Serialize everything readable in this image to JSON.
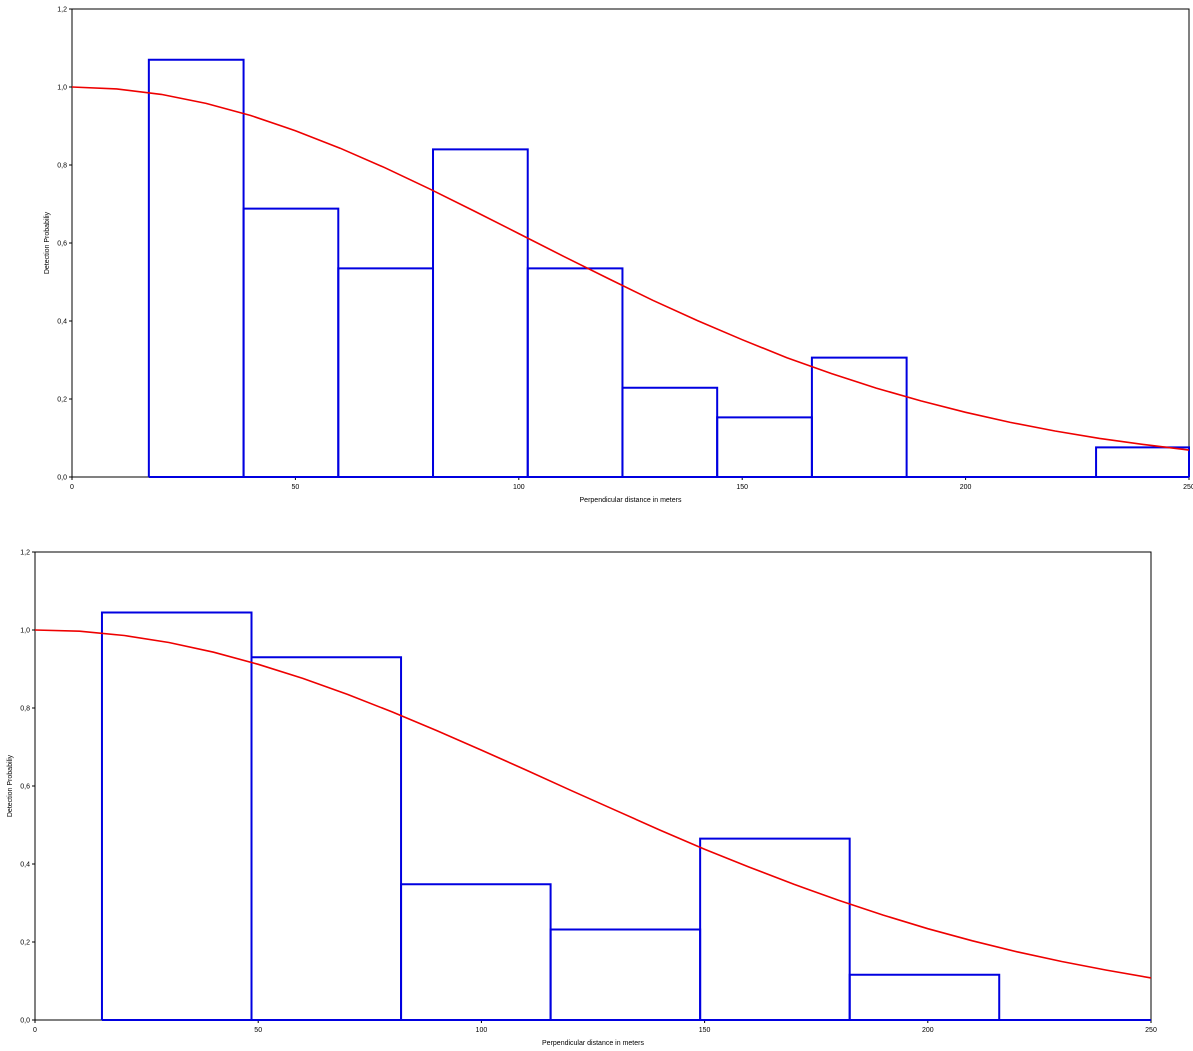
{
  "colors": {
    "histogram": "#0000e0",
    "curve": "#ee0000",
    "axis": "#000000"
  },
  "chart_data": [
    {
      "type": "bar",
      "xlabel": "Perpendicular distance in meters",
      "ylabel": "Detection Probabiliy",
      "xlim": [
        0,
        250
      ],
      "ylim": [
        0,
        1.2
      ],
      "xticks": [
        0,
        50,
        100,
        150,
        200,
        250
      ],
      "xtick_labels": [
        "0",
        "50",
        "100",
        "150",
        "200",
        "250"
      ],
      "yticks": [
        0,
        0.2,
        0.4,
        0.6,
        0.8,
        1.0,
        1.2
      ],
      "ytick_labels": [
        "0,0",
        "0,2",
        "0,4",
        "0,6",
        "0,8",
        "1,0",
        "1,2"
      ],
      "grid": false,
      "bins": [
        {
          "x0": 17.2,
          "x1": 38.4,
          "value": 1.07
        },
        {
          "x0": 38.4,
          "x1": 59.6,
          "value": 0.688
        },
        {
          "x0": 59.6,
          "x1": 80.8,
          "value": 0.535
        },
        {
          "x0": 80.8,
          "x1": 102.0,
          "value": 0.84
        },
        {
          "x0": 102.0,
          "x1": 123.2,
          "value": 0.535
        },
        {
          "x0": 123.2,
          "x1": 144.4,
          "value": 0.229
        },
        {
          "x0": 144.4,
          "x1": 165.6,
          "value": 0.153
        },
        {
          "x0": 165.6,
          "x1": 186.8,
          "value": 0.306
        },
        {
          "x0": 186.8,
          "x1": 208.0,
          "value": 0.0
        },
        {
          "x0": 208.0,
          "x1": 229.2,
          "value": 0.0
        },
        {
          "x0": 229.2,
          "x1": 250.0,
          "value": 0.076
        }
      ],
      "curve": {
        "x": [
          0,
          10,
          20,
          30,
          40,
          50,
          60,
          70,
          80,
          90,
          100,
          110,
          120,
          130,
          140,
          150,
          160,
          170,
          180,
          190,
          200,
          210,
          220,
          230,
          240,
          250
        ],
        "y": [
          1.0,
          0.995,
          0.981,
          0.958,
          0.927,
          0.888,
          0.843,
          0.793,
          0.739,
          0.682,
          0.624,
          0.566,
          0.509,
          0.453,
          0.401,
          0.352,
          0.306,
          0.265,
          0.228,
          0.195,
          0.166,
          0.14,
          0.118,
          0.099,
          0.083,
          0.069
        ]
      }
    },
    {
      "type": "bar",
      "xlabel": "Perpendicular distance in meters",
      "ylabel": "Detection Probabiliy",
      "xlim": [
        0,
        250
      ],
      "ylim": [
        0,
        1.2
      ],
      "xticks": [
        0,
        50,
        100,
        150,
        200,
        250
      ],
      "xtick_labels": [
        "0",
        "50",
        "100",
        "150",
        "200",
        "250"
      ],
      "yticks": [
        0,
        0.2,
        0.4,
        0.6,
        0.8,
        1.0,
        1.2
      ],
      "ytick_labels": [
        "0,0",
        "0,2",
        "0,4",
        "0,6",
        "0,8",
        "1,0",
        "1,2"
      ],
      "grid": false,
      "bins": [
        {
          "x0": 15.0,
          "x1": 48.5,
          "value": 1.045
        },
        {
          "x0": 48.5,
          "x1": 82.0,
          "value": 0.93
        },
        {
          "x0": 82.0,
          "x1": 115.5,
          "value": 0.348
        },
        {
          "x0": 115.5,
          "x1": 149.0,
          "value": 0.232
        },
        {
          "x0": 149.0,
          "x1": 182.5,
          "value": 0.465
        },
        {
          "x0": 182.5,
          "x1": 216.0,
          "value": 0.116
        },
        {
          "x0": 216.0,
          "x1": 250.0,
          "value": 0.0
        }
      ],
      "curve": {
        "x": [
          0,
          10,
          20,
          30,
          40,
          50,
          60,
          70,
          80,
          90,
          100,
          110,
          120,
          130,
          140,
          150,
          160,
          170,
          180,
          190,
          200,
          210,
          220,
          230,
          240,
          250
        ],
        "y": [
          1.0,
          0.997,
          0.986,
          0.968,
          0.943,
          0.912,
          0.876,
          0.835,
          0.79,
          0.742,
          0.692,
          0.641,
          0.589,
          0.538,
          0.487,
          0.438,
          0.392,
          0.348,
          0.307,
          0.269,
          0.234,
          0.203,
          0.175,
          0.15,
          0.128,
          0.108
        ]
      }
    }
  ]
}
